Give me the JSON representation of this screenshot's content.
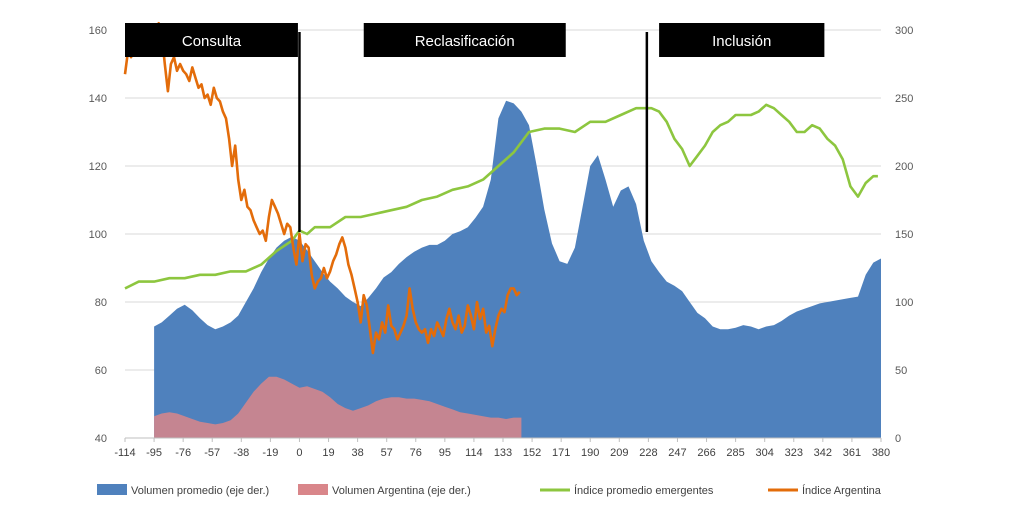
{
  "chart_data": {
    "type": "area",
    "title": "",
    "grid": true,
    "legend_position": "bottom",
    "xlabel": "",
    "ylabel": "",
    "ylim_left": [
      40,
      160
    ],
    "ylim_right": [
      0,
      300
    ],
    "y_ticks_left": [
      "40",
      "60",
      "80",
      "100",
      "120",
      "140",
      "160"
    ],
    "y_ticks_right": [
      "0",
      "50",
      "100",
      "150",
      "200",
      "250",
      "300"
    ],
    "x_ticks": [
      "-114",
      "-95",
      "-76",
      "-57",
      "-38",
      "-19",
      "0",
      "19",
      "38",
      "57",
      "76",
      "95",
      "114",
      "133",
      "152",
      "171",
      "190",
      "209",
      "228",
      "247",
      "266",
      "285",
      "304",
      "323",
      "342",
      "361",
      "380"
    ],
    "xlim": [
      -114,
      380
    ],
    "phases": [
      {
        "label": "Consulta",
        "x_start": -114,
        "x_end": -1
      },
      {
        "label": "Reclasificación",
        "x_start": 42,
        "x_end": 174
      },
      {
        "label": "Inclusión",
        "x_start": 235,
        "x_end": 343
      }
    ],
    "event_lines_x": [
      0,
      227
    ],
    "colors": {
      "vol_prom": "#4f81bd",
      "vol_arg": "#d9868a",
      "idx_em": "#8dc63f",
      "idx_arg": "#e36c0a"
    },
    "series": [
      {
        "name": "Volumen promedio (eje der.)",
        "kind": "area",
        "axis": "right",
        "x": [
          -95,
          -90,
          -85,
          -80,
          -75,
          -70,
          -65,
          -60,
          -55,
          -50,
          -45,
          -40,
          -35,
          -30,
          -25,
          -20,
          -15,
          -10,
          -5,
          0,
          5,
          10,
          15,
          20,
          25,
          30,
          35,
          40,
          45,
          50,
          55,
          60,
          65,
          70,
          75,
          80,
          85,
          90,
          95,
          100,
          105,
          110,
          115,
          120,
          125,
          130,
          135,
          140,
          145,
          150,
          155,
          160,
          165,
          170,
          175,
          180,
          185,
          190,
          195,
          200,
          205,
          210,
          215,
          220,
          225,
          230,
          235,
          240,
          245,
          250,
          255,
          260,
          265,
          270,
          275,
          280,
          285,
          290,
          295,
          300,
          305,
          310,
          315,
          320,
          325,
          330,
          335,
          340,
          345,
          350,
          355,
          360,
          365,
          370,
          375,
          380
        ],
        "values": [
          82,
          85,
          90,
          95,
          98,
          94,
          88,
          83,
          80,
          82,
          85,
          90,
          100,
          110,
          122,
          132,
          140,
          145,
          148,
          145,
          138,
          130,
          122,
          115,
          110,
          104,
          100,
          97,
          103,
          110,
          118,
          122,
          128,
          133,
          137,
          140,
          142,
          142,
          145,
          150,
          152,
          155,
          162,
          170,
          190,
          235,
          248,
          246,
          240,
          230,
          200,
          168,
          143,
          130,
          128,
          140,
          170,
          200,
          208,
          190,
          170,
          182,
          185,
          172,
          145,
          130,
          122,
          115,
          112,
          108,
          100,
          92,
          88,
          82,
          80,
          80,
          81,
          83,
          82,
          80,
          82,
          83,
          86,
          90,
          93,
          95,
          97,
          99,
          100,
          101,
          102,
          103,
          104,
          120,
          129,
          132
        ]
      },
      {
        "name": "Volumen Argentina (eje der.)",
        "kind": "area",
        "axis": "right",
        "x": [
          -95,
          -90,
          -85,
          -80,
          -75,
          -70,
          -65,
          -60,
          -55,
          -50,
          -45,
          -40,
          -35,
          -30,
          -25,
          -20,
          -15,
          -10,
          -5,
          0,
          5,
          10,
          15,
          20,
          25,
          30,
          35,
          40,
          45,
          50,
          55,
          60,
          65,
          70,
          75,
          80,
          85,
          90,
          95,
          100,
          105,
          110,
          115,
          120,
          125,
          130,
          135,
          140,
          145
        ],
        "values": [
          16,
          18,
          19,
          18,
          16,
          14,
          12,
          11,
          10,
          11,
          13,
          18,
          26,
          34,
          40,
          45,
          45,
          43,
          40,
          37,
          38,
          36,
          34,
          30,
          25,
          22,
          20,
          22,
          24,
          27,
          29,
          30,
          30,
          29,
          29,
          28,
          27,
          25,
          23,
          21,
          19,
          18,
          17,
          16,
          15,
          15,
          14,
          15,
          15
        ]
      },
      {
        "name": "Índice promedio emergentes",
        "kind": "line",
        "axis": "left",
        "x": [
          -114,
          -105,
          -95,
          -85,
          -75,
          -65,
          -55,
          -45,
          -35,
          -25,
          -15,
          -5,
          0,
          5,
          10,
          20,
          30,
          40,
          50,
          60,
          70,
          80,
          90,
          100,
          110,
          120,
          130,
          140,
          150,
          160,
          170,
          180,
          190,
          200,
          210,
          220,
          225,
          230,
          235,
          240,
          245,
          250,
          255,
          260,
          265,
          270,
          275,
          280,
          285,
          290,
          295,
          300,
          305,
          310,
          315,
          320,
          325,
          330,
          335,
          340,
          345,
          350,
          355,
          360,
          365,
          370,
          375,
          378
        ],
        "values": [
          84,
          86,
          86,
          87,
          87,
          88,
          88,
          89,
          89,
          91,
          95,
          98,
          101,
          100,
          102,
          102,
          105,
          105,
          106,
          107,
          108,
          110,
          111,
          113,
          114,
          116,
          120,
          124,
          130,
          131,
          131,
          130,
          133,
          133,
          135,
          137,
          137,
          137,
          136,
          133,
          128,
          125,
          120,
          123,
          126,
          130,
          132,
          133,
          135,
          135,
          135,
          136,
          138,
          137,
          135,
          133,
          130,
          130,
          132,
          131,
          128,
          126,
          122,
          114,
          111,
          115,
          117,
          117
        ]
      },
      {
        "name": "Índice Argentina",
        "kind": "line",
        "axis": "left",
        "x": [
          -114,
          -112,
          -110,
          -108,
          -105,
          -102,
          -100,
          -98,
          -96,
          -94,
          -92,
          -90,
          -88,
          -86,
          -84,
          -82,
          -80,
          -78,
          -76,
          -74,
          -72,
          -70,
          -68,
          -66,
          -64,
          -62,
          -60,
          -58,
          -56,
          -54,
          -52,
          -50,
          -48,
          -46,
          -44,
          -42,
          -40,
          -38,
          -36,
          -34,
          -32,
          -30,
          -28,
          -26,
          -24,
          -22,
          -20,
          -18,
          -16,
          -14,
          -12,
          -10,
          -8,
          -6,
          -4,
          -2,
          0,
          2,
          4,
          6,
          8,
          10,
          12,
          14,
          16,
          18,
          20,
          22,
          24,
          26,
          28,
          30,
          32,
          34,
          36,
          38,
          40,
          42,
          44,
          46,
          48,
          50,
          52,
          54,
          56,
          58,
          60,
          62,
          64,
          66,
          68,
          70,
          72,
          74,
          76,
          78,
          80,
          82,
          84,
          86,
          88,
          90,
          92,
          94,
          96,
          98,
          100,
          102,
          104,
          106,
          108,
          110,
          112,
          114,
          116,
          118,
          120,
          122,
          124,
          126,
          128,
          130,
          132,
          134,
          136,
          138,
          140,
          142,
          144
        ],
        "values": [
          147,
          154,
          152,
          156,
          159,
          158,
          161,
          160,
          157,
          160,
          162,
          159,
          150,
          142,
          150,
          152,
          148,
          150,
          148,
          147,
          145,
          149,
          146,
          143,
          144,
          140,
          141,
          138,
          143,
          140,
          139,
          136,
          134,
          128,
          120,
          126,
          116,
          110,
          113,
          108,
          107,
          104,
          102,
          100,
          101,
          98,
          105,
          110,
          108,
          106,
          103,
          100,
          103,
          102,
          96,
          91,
          100,
          92,
          97,
          96,
          88,
          84,
          86,
          87,
          90,
          87,
          89,
          92,
          94,
          97,
          99,
          96,
          91,
          88,
          84,
          80,
          74,
          82,
          79,
          72,
          65,
          71,
          69,
          74,
          71,
          79,
          73,
          72,
          69,
          71,
          73,
          76,
          84,
          78,
          74,
          72,
          71,
          72,
          68,
          72,
          70,
          74,
          72,
          70,
          75,
          78,
          74,
          72,
          76,
          71,
          73,
          79,
          76,
          72,
          80,
          75,
          78,
          71,
          73,
          67,
          72,
          76,
          78,
          77,
          82,
          84,
          84,
          82,
          83
        ]
      }
    ]
  }
}
